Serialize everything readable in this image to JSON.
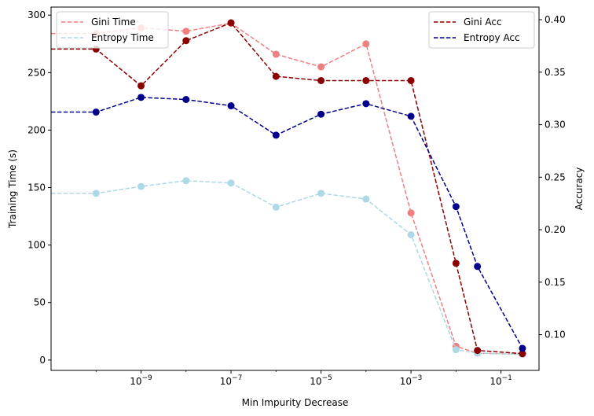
{
  "chart_data": {
    "type": "line",
    "xlabel": "Min Impurity Decrease",
    "ylabel_left": "Training Time (s)",
    "ylabel_right": "Accuracy",
    "xscale": "log",
    "x": [
      1e-10,
      1e-09,
      1e-08,
      1e-07,
      1e-06,
      1e-05,
      0.0001,
      0.001,
      0.01,
      0.03,
      0.3
    ],
    "xlim": [
      1e-11,
      0.7
    ],
    "ylim_left": [
      -9,
      307
    ],
    "ylim_right": [
      0.066,
      0.412
    ],
    "x_ticks": [
      {
        "value": 1e-09,
        "base": "10",
        "exp": "−9"
      },
      {
        "value": 1e-07,
        "base": "10",
        "exp": "−7"
      },
      {
        "value": 1e-05,
        "base": "10",
        "exp": "−5"
      },
      {
        "value": 0.001,
        "base": "10",
        "exp": "−3"
      },
      {
        "value": 0.1,
        "base": "10",
        "exp": "−1"
      }
    ],
    "y_ticks_left": [
      {
        "value": 0,
        "label": "0"
      },
      {
        "value": 50,
        "label": "50"
      },
      {
        "value": 100,
        "label": "100"
      },
      {
        "value": 150,
        "label": "150"
      },
      {
        "value": 200,
        "label": "200"
      },
      {
        "value": 250,
        "label": "250"
      },
      {
        "value": 300,
        "label": "300"
      }
    ],
    "y_ticks_right": [
      {
        "value": 0.1,
        "label": "0.10"
      },
      {
        "value": 0.15,
        "label": "0.15"
      },
      {
        "value": 0.2,
        "label": "0.20"
      },
      {
        "value": 0.25,
        "label": "0.25"
      },
      {
        "value": 0.3,
        "label": "0.30"
      },
      {
        "value": 0.35,
        "label": "0.35"
      },
      {
        "value": 0.4,
        "label": "0.40"
      }
    ],
    "series": [
      {
        "name": "Gini Time",
        "axis": "left",
        "color": "#f08080",
        "values": [
          284,
          289,
          286,
          293,
          266,
          255,
          275,
          128,
          12,
          6,
          5
        ]
      },
      {
        "name": "Entropy Time",
        "axis": "left",
        "color": "#add8e6",
        "values": [
          145,
          151,
          156,
          154,
          133,
          145,
          140,
          109,
          9,
          6,
          5
        ]
      },
      {
        "name": "Gini Acc",
        "axis": "right",
        "color": "#8b0000",
        "values": [
          0.372,
          0.337,
          0.38,
          0.397,
          0.346,
          0.342,
          0.342,
          0.342,
          0.168,
          0.085,
          0.082
        ]
      },
      {
        "name": "Entropy Acc",
        "axis": "right",
        "color": "#00008b",
        "values": [
          0.312,
          0.326,
          0.324,
          0.318,
          0.29,
          0.31,
          0.32,
          0.308,
          0.222,
          0.165,
          0.087
        ]
      }
    ],
    "legends": [
      {
        "placement": "upper-left",
        "items": [
          "Gini Time",
          "Entropy Time"
        ]
      },
      {
        "placement": "upper-right",
        "items": [
          "Gini Acc",
          "Entropy Acc"
        ]
      }
    ],
    "grid": false
  }
}
